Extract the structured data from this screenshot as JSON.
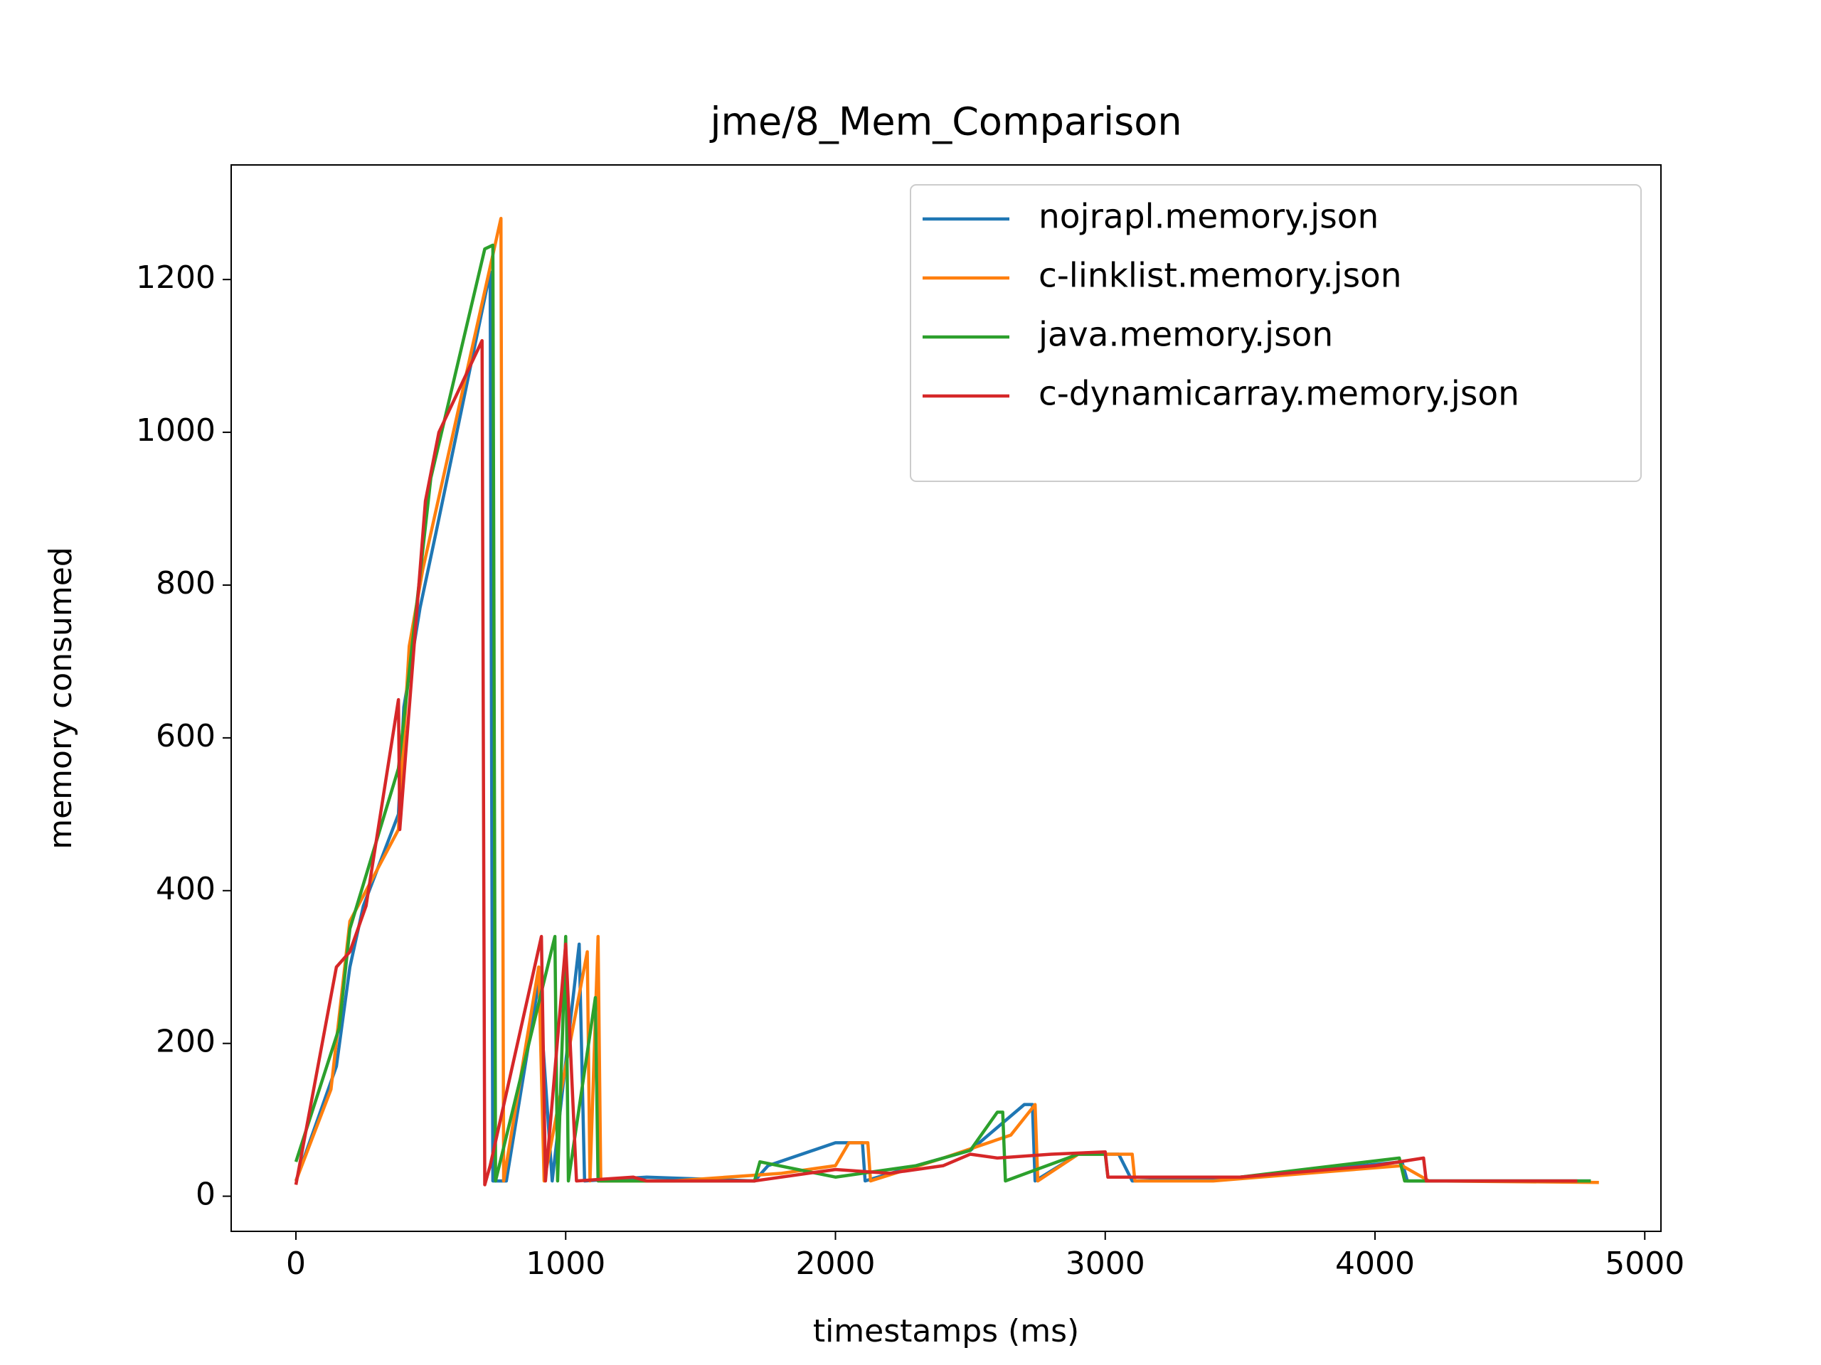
{
  "chart_data": {
    "type": "line",
    "title": "jme/8_Mem_Comparison",
    "x_label": "timestamps (ms)",
    "y_label": "memory consumed",
    "xlim": [
      -240,
      5060
    ],
    "ylim": [
      -46,
      1350
    ],
    "xticks": [
      0,
      1000,
      2000,
      3000,
      4000,
      5000
    ],
    "yticks": [
      0,
      200,
      400,
      600,
      800,
      1000,
      1200
    ],
    "legend": "upper right",
    "series": [
      {
        "name": "nojrapl.memory.json",
        "color": "#1f77b4",
        "x": [
          0,
          150,
          200,
          250,
          380,
          400,
          460,
          520,
          720,
          730,
          780,
          900,
          950,
          1050,
          1070,
          1300,
          1700,
          1750,
          2000,
          2100,
          2110,
          2300,
          2500,
          2700,
          2730,
          2740,
          2900,
          3050,
          3100,
          3500,
          4100,
          4120,
          4200,
          4800
        ],
        "values": [
          20,
          170,
          300,
          380,
          500,
          640,
          770,
          870,
          1210,
          20,
          20,
          280,
          20,
          330,
          20,
          25,
          20,
          40,
          70,
          70,
          20,
          40,
          60,
          120,
          120,
          20,
          55,
          55,
          20,
          25,
          45,
          20,
          20,
          20
        ]
      },
      {
        "name": "c-linklist.memory.json",
        "color": "#ff7f0e",
        "x": [
          0,
          130,
          200,
          380,
          420,
          470,
          760,
          770,
          900,
          920,
          1080,
          1090,
          1120,
          1130,
          1400,
          1800,
          2000,
          2050,
          2120,
          2130,
          2400,
          2650,
          2740,
          2750,
          2900,
          3100,
          3110,
          3400,
          4100,
          4200,
          4830
        ],
        "values": [
          20,
          140,
          360,
          480,
          720,
          820,
          1280,
          20,
          300,
          20,
          320,
          20,
          340,
          20,
          20,
          30,
          40,
          70,
          70,
          20,
          50,
          80,
          120,
          20,
          55,
          55,
          20,
          20,
          40,
          20,
          18
        ]
      },
      {
        "name": "java.memory.json",
        "color": "#2ca02c",
        "x": [
          0,
          160,
          200,
          380,
          500,
          700,
          730,
          740,
          960,
          970,
          1000,
          1010,
          1110,
          1120,
          1300,
          1700,
          1720,
          2000,
          2300,
          2500,
          2600,
          2620,
          2630,
          2900,
          3000,
          3010,
          3500,
          4090,
          4110,
          4200,
          4800
        ],
        "values": [
          45,
          220,
          350,
          560,
          940,
          1240,
          1245,
          20,
          340,
          20,
          340,
          20,
          260,
          20,
          20,
          20,
          45,
          25,
          40,
          60,
          110,
          110,
          20,
          55,
          55,
          25,
          25,
          50,
          20,
          20,
          20
        ]
      },
      {
        "name": "c-dynamicarray.memory.json",
        "color": "#d62728",
        "x": [
          0,
          150,
          200,
          260,
          380,
          385,
          480,
          530,
          690,
          700,
          720,
          910,
          925,
          1000,
          1040,
          1250,
          1300,
          1700,
          2000,
          2200,
          2400,
          2500,
          2600,
          2800,
          3000,
          3010,
          3500,
          4000,
          4180,
          4190,
          4750
        ],
        "values": [
          15,
          300,
          320,
          380,
          650,
          480,
          910,
          1000,
          1120,
          15,
          40,
          340,
          20,
          330,
          20,
          25,
          20,
          20,
          35,
          30,
          40,
          55,
          50,
          55,
          58,
          25,
          25,
          40,
          50,
          20,
          20
        ]
      }
    ]
  }
}
